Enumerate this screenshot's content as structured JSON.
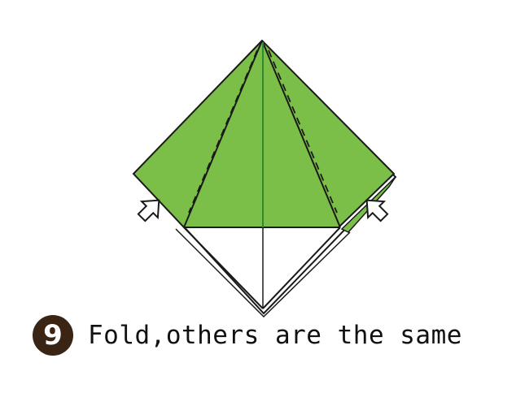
{
  "step": {
    "number": "9",
    "instruction": "Fold,others are the same"
  },
  "colors": {
    "paper_green": "#7cbf48",
    "crease_line": "#2e8b2e",
    "outline": "#1a1a1a",
    "step_badge": "#3a2413"
  },
  "icons": {
    "left_arrow": "push-arrow-icon",
    "right_arrow": "push-arrow-icon"
  }
}
